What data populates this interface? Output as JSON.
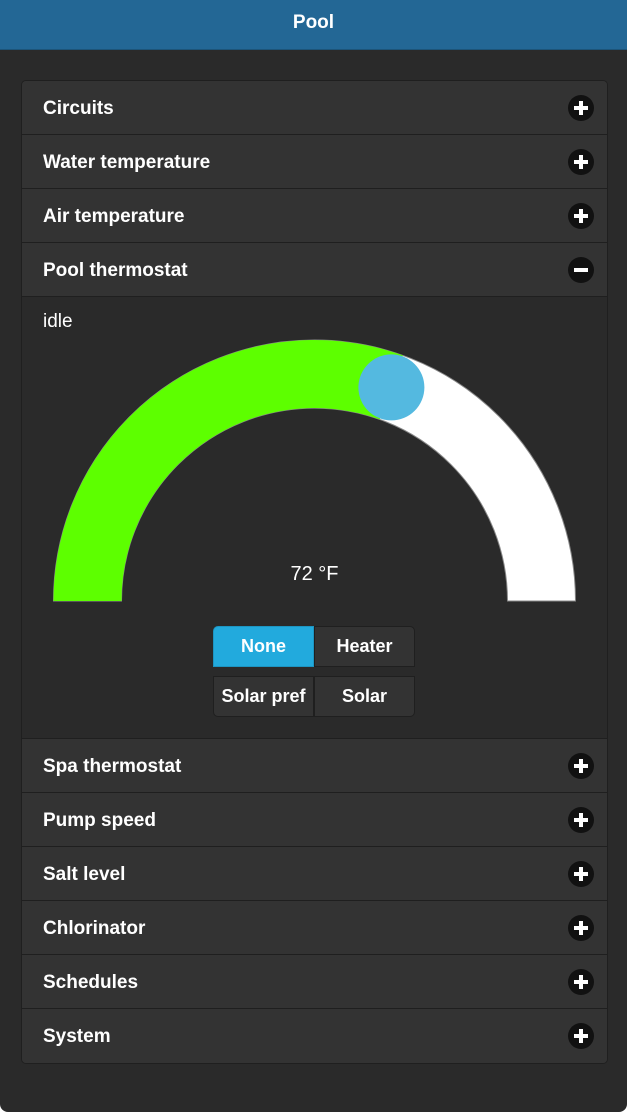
{
  "header": {
    "title": "Pool"
  },
  "sections_top": [
    {
      "label": "Circuits",
      "icon": "plus-icon"
    },
    {
      "label": "Water temperature",
      "icon": "plus-icon"
    },
    {
      "label": "Air temperature",
      "icon": "plus-icon"
    },
    {
      "label": "Pool thermostat",
      "icon": "minus-icon"
    }
  ],
  "thermostat": {
    "status": "idle",
    "temperature_text": "72 °F",
    "setpoint_fraction": 0.61,
    "colors": {
      "fill": "#5dff00",
      "track": "#ffffff",
      "handle": "#54b9e0",
      "active_button": "#22aadd"
    },
    "modes": [
      "None",
      "Heater",
      "Solar pref",
      "Solar"
    ],
    "selected_mode": "None"
  },
  "sections_bottom": [
    {
      "label": "Spa thermostat",
      "icon": "plus-icon"
    },
    {
      "label": "Pump speed",
      "icon": "plus-icon"
    },
    {
      "label": "Salt level",
      "icon": "plus-icon"
    },
    {
      "label": "Chlorinator",
      "icon": "plus-icon"
    },
    {
      "label": "Schedules",
      "icon": "plus-icon"
    },
    {
      "label": "System",
      "icon": "plus-icon"
    }
  ]
}
